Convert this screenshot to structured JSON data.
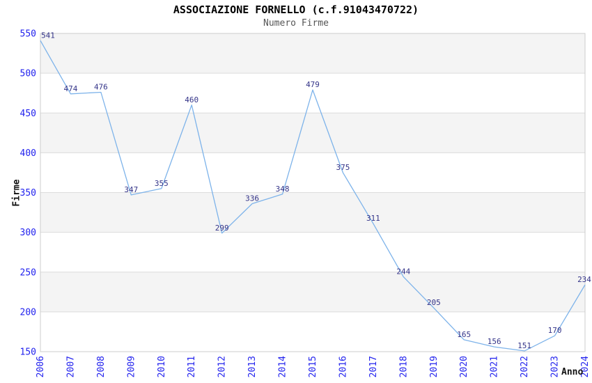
{
  "title": "ASSOCIAZIONE FORNELLO (c.f.91043470722)",
  "subtitle": "Numero Firme",
  "chart_data": {
    "type": "line",
    "title": "ASSOCIAZIONE FORNELLO (c.f.91043470722)",
    "subtitle": "Numero Firme",
    "xlabel": "Anno",
    "ylabel": "Firme",
    "x": [
      "2006",
      "2007",
      "2008",
      "2009",
      "2010",
      "2011",
      "2012",
      "2013",
      "2014",
      "2015",
      "2016",
      "2017",
      "2018",
      "2019",
      "2020",
      "2021",
      "2022",
      "2023",
      "2024"
    ],
    "values": [
      541,
      474,
      476,
      347,
      355,
      460,
      299,
      336,
      348,
      479,
      375,
      311,
      244,
      205,
      165,
      156,
      151,
      170,
      234
    ],
    "ylim": [
      150,
      550
    ],
    "yticks": [
      150,
      200,
      250,
      300,
      350,
      400,
      450,
      500,
      550
    ],
    "grid": "horizontal gridlines with alternating shaded bands",
    "legend": "none",
    "data_labels": true,
    "colors": {
      "line": "#7db3ea",
      "tick_label": "#2222ee",
      "data_label": "#333388",
      "band_shade": "#f4f4f4",
      "band_plain": "#ffffff",
      "gridline": "#dcdcdc",
      "plot_border": "#cccccc"
    }
  }
}
